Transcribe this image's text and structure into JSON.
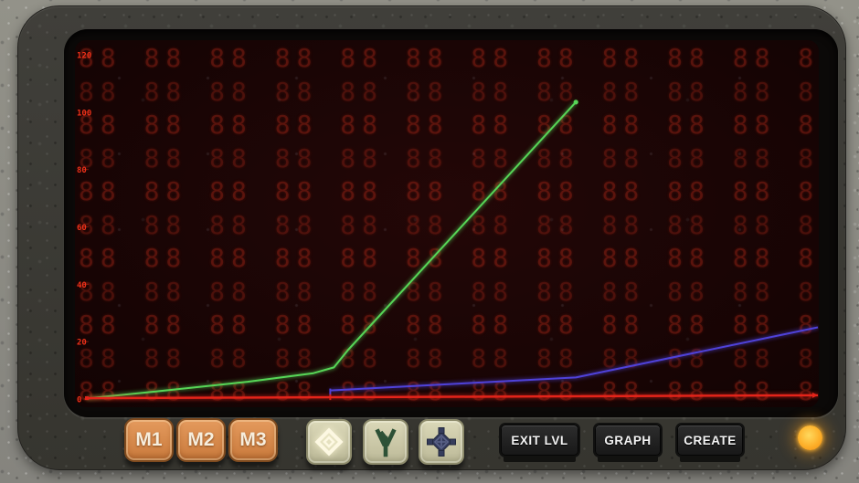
{
  "device": {
    "name": "handheld-graph-console"
  },
  "chart_data": {
    "type": "line",
    "title": "",
    "xlabel": "",
    "ylabel": "",
    "ylim": [
      0,
      120
    ],
    "y_ticks": [
      0,
      20,
      40,
      60,
      80,
      100,
      120
    ],
    "x_tick_labels_visible": false,
    "grid": "seven-segment-8-pattern",
    "legend_position": "none",
    "background_glyph": "8",
    "axis_label_color": "#f03119",
    "series": [
      {
        "name": "green-line",
        "color": "#57d657",
        "stroke_width": 2,
        "end_marker": "dot",
        "points": [
          [
            0.0,
            0.2
          ],
          [
            0.09,
            2.5
          ],
          [
            0.22,
            6.0
          ],
          [
            0.31,
            9.0
          ],
          [
            0.338,
            11.0
          ],
          [
            0.357,
            17.0
          ],
          [
            0.669,
            103.5
          ]
        ]
      },
      {
        "name": "blue-line",
        "color": "#4f42d9",
        "stroke_width": 2,
        "start_marker": "tick",
        "points": [
          [
            0.333,
            3.0
          ],
          [
            0.669,
            7.5
          ],
          [
            1.0,
            25.0
          ]
        ]
      },
      {
        "name": "red-line",
        "color": "#e4241a",
        "stroke_width": 2.4,
        "start_marker": "square",
        "end_marker": "arrow",
        "mid_markers": [
          0.333
        ],
        "points": [
          [
            0.0,
            0.3
          ],
          [
            0.333,
            0.6
          ],
          [
            1.0,
            1.3
          ]
        ]
      }
    ]
  },
  "buttons": {
    "memory": [
      {
        "label": "M1"
      },
      {
        "label": "M2"
      },
      {
        "label": "M3"
      }
    ],
    "icons": [
      {
        "name": "diamond-outline-icon",
        "color": "#fdf8e2",
        "state": "glowing"
      },
      {
        "name": "trident-icon",
        "color": "#2d5136",
        "state": "normal"
      },
      {
        "name": "gem-diamond-icon",
        "color": "#353c5c",
        "state": "normal"
      }
    ],
    "actions": [
      {
        "label": "EXIT LVL"
      },
      {
        "label": "GRAPH"
      },
      {
        "label": "CREATE"
      }
    ]
  },
  "indicator": {
    "name": "power-led",
    "color": "#fdb02a",
    "state": "on"
  }
}
